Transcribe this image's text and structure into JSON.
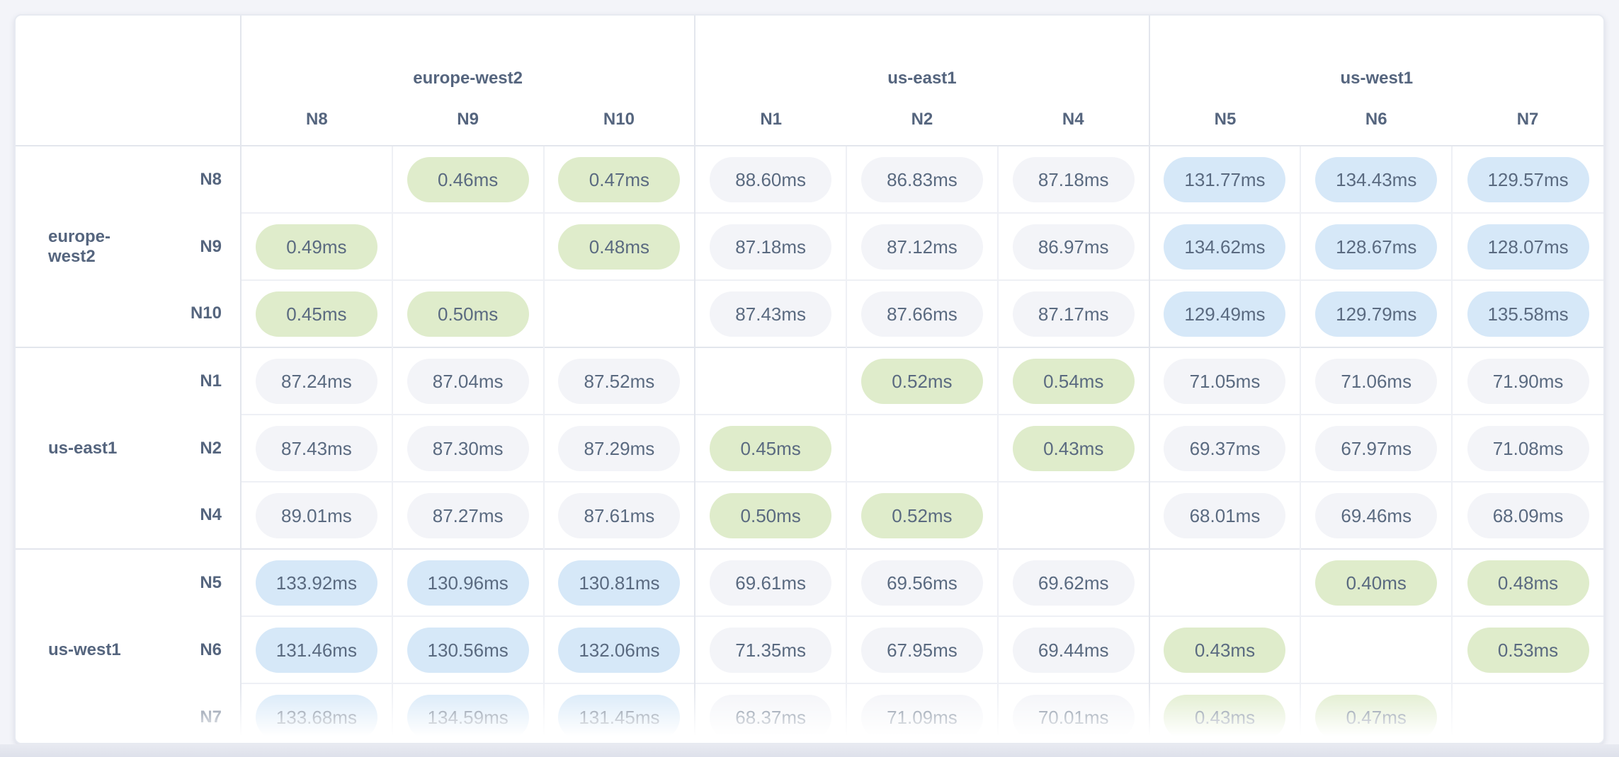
{
  "matrix": {
    "unit": "ms",
    "column_groups": [
      {
        "region": "europe-west2",
        "nodes": [
          "N8",
          "N9",
          "N10"
        ]
      },
      {
        "region": "us-east1",
        "nodes": [
          "N1",
          "N2",
          "N4"
        ]
      },
      {
        "region": "us-west1",
        "nodes": [
          "N5",
          "N6",
          "N7"
        ]
      }
    ],
    "row_groups": [
      {
        "region": "europe-west2",
        "rows": [
          {
            "node": "N8",
            "cells": [
              null,
              "0.46ms",
              "0.47ms",
              "88.60ms",
              "86.83ms",
              "87.18ms",
              "131.77ms",
              "134.43ms",
              "129.57ms"
            ]
          },
          {
            "node": "N9",
            "cells": [
              "0.49ms",
              null,
              "0.48ms",
              "87.18ms",
              "87.12ms",
              "86.97ms",
              "134.62ms",
              "128.67ms",
              "128.07ms"
            ]
          },
          {
            "node": "N10",
            "cells": [
              "0.45ms",
              "0.50ms",
              null,
              "87.43ms",
              "87.66ms",
              "87.17ms",
              "129.49ms",
              "129.79ms",
              "135.58ms"
            ]
          }
        ]
      },
      {
        "region": "us-east1",
        "rows": [
          {
            "node": "N1",
            "cells": [
              "87.24ms",
              "87.04ms",
              "87.52ms",
              null,
              "0.52ms",
              "0.54ms",
              "71.05ms",
              "71.06ms",
              "71.90ms"
            ]
          },
          {
            "node": "N2",
            "cells": [
              "87.43ms",
              "87.30ms",
              "87.29ms",
              "0.45ms",
              null,
              "0.43ms",
              "69.37ms",
              "67.97ms",
              "71.08ms"
            ]
          },
          {
            "node": "N4",
            "cells": [
              "89.01ms",
              "87.27ms",
              "87.61ms",
              "0.50ms",
              "0.52ms",
              null,
              "68.01ms",
              "69.46ms",
              "68.09ms"
            ]
          }
        ]
      },
      {
        "region": "us-west1",
        "rows": [
          {
            "node": "N5",
            "cells": [
              "133.92ms",
              "130.96ms",
              "130.81ms",
              "69.61ms",
              "69.56ms",
              "69.62ms",
              null,
              "0.40ms",
              "0.48ms"
            ]
          },
          {
            "node": "N6",
            "cells": [
              "131.46ms",
              "130.56ms",
              "132.06ms",
              "71.35ms",
              "67.95ms",
              "69.44ms",
              "0.43ms",
              null,
              "0.53ms"
            ]
          },
          {
            "node": "N7",
            "cells": [
              "133.68ms",
              "134.59ms",
              "131.45ms",
              "68.37ms",
              "71.09ms",
              "70.01ms",
              "0.43ms",
              "0.47ms",
              null
            ]
          }
        ]
      }
    ]
  },
  "colors": {
    "pill_low_latency": "#dfeccb",
    "pill_mid_latency": "#f3f4f8",
    "pill_high_latency": "#d6e8f8",
    "label_text": "#55657e",
    "pill_text": "#5a6a80",
    "grid_light": "#eef0f5",
    "grid_dark": "#e3e6ed",
    "page_background": "#f3f4f9",
    "card_background": "#ffffff"
  }
}
